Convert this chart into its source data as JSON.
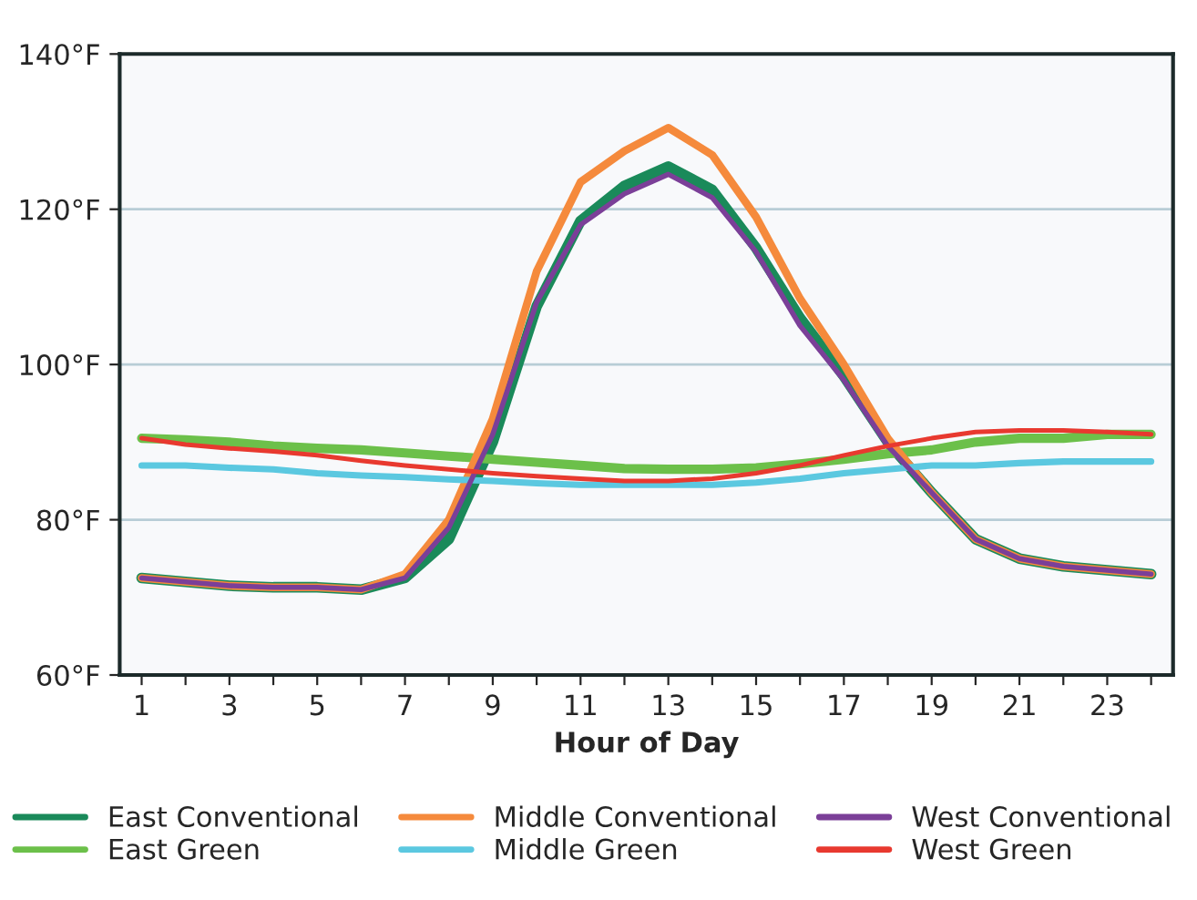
{
  "chart_data": {
    "type": "line",
    "xlabel": "Hour of Day",
    "x": [
      1,
      2,
      3,
      4,
      5,
      6,
      7,
      8,
      9,
      10,
      11,
      12,
      13,
      14,
      15,
      16,
      17,
      18,
      19,
      20,
      21,
      22,
      23,
      24
    ],
    "xlim": [
      0.5,
      24.5
    ],
    "xticks": [
      1,
      {
        "value": 2,
        "label": null
      },
      3,
      {
        "value": 4,
        "label": null
      },
      5,
      {
        "value": 6,
        "label": null
      },
      7,
      {
        "value": 8,
        "label": null
      },
      9,
      {
        "value": 10,
        "label": null
      },
      11,
      {
        "value": 12,
        "label": null
      },
      13,
      {
        "value": 14,
        "label": null
      },
      15,
      {
        "value": 16,
        "label": null
      },
      17,
      {
        "value": 18,
        "label": null
      },
      19,
      {
        "value": 20,
        "label": null
      },
      21,
      {
        "value": 22,
        "label": null
      },
      23,
      {
        "value": 24,
        "label": null
      }
    ],
    "ylim": [
      60,
      140
    ],
    "yticks": [
      {
        "value": 60,
        "label": "60°F"
      },
      {
        "value": 80,
        "label": "80°F"
      },
      {
        "value": 100,
        "label": "100°F"
      },
      {
        "value": 120,
        "label": "120°F"
      },
      {
        "value": 140,
        "label": "140°F"
      }
    ],
    "grid": "y",
    "legend": "bottom",
    "marker": "none",
    "line_style": "solid",
    "series": [
      {
        "name": "East Conventional",
        "color": "#1a8a5a",
        "values": [
          72.5,
          72,
          71.5,
          71.3,
          71.3,
          71,
          72.5,
          77.5,
          90,
          107.5,
          118.5,
          123,
          125.5,
          122.5,
          115,
          106,
          98.5,
          90,
          83.5,
          77.5,
          75,
          74,
          73.5,
          73
        ]
      },
      {
        "name": "East Green",
        "color": "#6cc04a",
        "values": [
          90.5,
          90.3,
          90,
          89.5,
          89.2,
          89,
          88.6,
          88.2,
          87.8,
          87.4,
          87,
          86.6,
          86.5,
          86.5,
          86.7,
          87.2,
          87.8,
          88.5,
          89,
          90,
          90.5,
          90.5,
          91,
          91
        ]
      },
      {
        "name": "Middle Conventional",
        "color": "#f58a3c",
        "values": [
          72.5,
          72,
          71.5,
          71.3,
          71.3,
          71,
          73,
          80,
          93,
          112,
          123.5,
          127.5,
          130.5,
          127,
          119,
          108.5,
          100,
          90.5,
          83.5,
          77.5,
          75,
          74,
          73.5,
          73
        ]
      },
      {
        "name": "Middle Green",
        "color": "#5bc8e0",
        "values": [
          87,
          87,
          86.7,
          86.5,
          86,
          85.7,
          85.5,
          85.2,
          85,
          84.7,
          84.5,
          84.5,
          84.5,
          84.5,
          84.8,
          85.3,
          86,
          86.5,
          87,
          87,
          87.3,
          87.5,
          87.5,
          87.5
        ]
      },
      {
        "name": "West Conventional",
        "color": "#7b3f98",
        "values": [
          72.5,
          72,
          71.5,
          71.3,
          71.3,
          71,
          72.5,
          79,
          91,
          108,
          118,
          122,
          124.5,
          121.5,
          114.5,
          105,
          98,
          89.5,
          83.5,
          77.5,
          75,
          74,
          73.5,
          73
        ]
      },
      {
        "name": "West Green",
        "color": "#e8392f",
        "values": [
          90.5,
          89.7,
          89.2,
          88.8,
          88.3,
          87.6,
          87,
          86.5,
          86,
          85.6,
          85.3,
          85,
          85,
          85.3,
          86,
          87,
          88.3,
          89.5,
          90.5,
          91.3,
          91.5,
          91.5,
          91.3,
          91
        ]
      }
    ]
  }
}
